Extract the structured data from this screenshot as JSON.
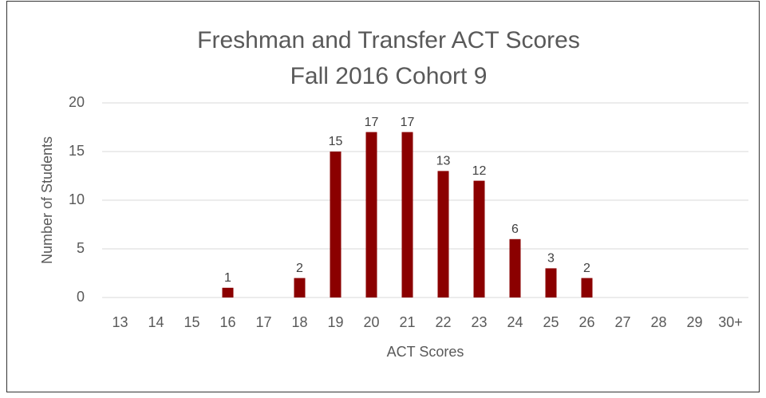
{
  "chart_data": {
    "type": "bar",
    "title": "Freshman and Transfer ACT Scores",
    "subtitle": "Fall 2016 Cohort 9",
    "x_label": "ACT Scores",
    "y_label": "Number of Students",
    "categories": [
      "13",
      "14",
      "15",
      "16",
      "17",
      "18",
      "19",
      "20",
      "21",
      "22",
      "23",
      "24",
      "25",
      "26",
      "27",
      "28",
      "29",
      "30+"
    ],
    "values": [
      0,
      0,
      0,
      1,
      0,
      2,
      15,
      17,
      17,
      13,
      12,
      6,
      3,
      2,
      0,
      0,
      0,
      0
    ],
    "color": "#8b0000",
    "ylim": [
      0,
      20
    ],
    "yticks": [
      0,
      5,
      10,
      15,
      20
    ],
    "grid": true
  }
}
